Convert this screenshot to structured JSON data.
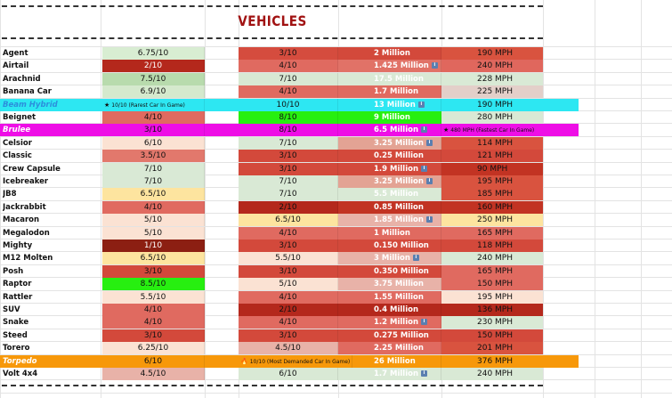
{
  "title": "VEHICLES",
  "colors": {
    "title": "#a11212",
    "cyan_band": "#2de7f2",
    "magenta_band": "#ee0ee6",
    "orange_band": "#f7980a",
    "bright_green": "#2ef016"
  },
  "rows": [
    {
      "name": "Agent",
      "rating1": "6.75/10",
      "rating2": "3/10",
      "price": "2 Million",
      "speed": "190 MPH",
      "c1": "#d8edd2",
      "c2": "#d54c3e",
      "cp": "#d3493b",
      "cs": "#d9533f"
    },
    {
      "name": "Airtail",
      "rating1": "2/10",
      "rating2": "4/10",
      "price": "1.425 Million",
      "speed": "240 MPH",
      "c1": "#b4281c",
      "c2": "#e06a60",
      "cp": "#e17267",
      "cs": "#e0675d",
      "price_icon": "info-icon"
    },
    {
      "name": "Arachnid",
      "rating1": "7.5/10",
      "rating2": "7/10",
      "price": "17.5 Million",
      "speed": "228 MPH",
      "c1": "#b8dbad",
      "c2": "#d8e8d3",
      "cp": "#d9e9d5",
      "cs": "#d9e9d5"
    },
    {
      "name": "Banana Car",
      "rating1": "6.9/10",
      "rating2": "4/10",
      "price": "1.7 Million",
      "speed": "225 MPH",
      "c1": "#d5e9cd",
      "c2": "#e06a60",
      "cp": "#e06a60",
      "cs": "#e3cfc9"
    },
    {
      "name": "Beam Hybrid",
      "rating1": "10/10",
      "rating2": "10/10",
      "price": "13 Million",
      "speed": "190 MPH",
      "band": "#2de7f2",
      "name_color": "#2b8fdc",
      "italic": true,
      "note1": "10/10 (Rarest Car In Game)",
      "price_icon": "info-icon"
    },
    {
      "name": "Beignet",
      "rating1": "4/10",
      "rating2": "8/10",
      "price": "9 Million",
      "speed": "280 MPH",
      "c1": "#e06a60",
      "c2": "#27ef10",
      "cp": "#27ef10",
      "cs": "#d9e9d5"
    },
    {
      "name": "Brulee",
      "rating1": "3/10",
      "rating2": "8/10",
      "price": "6.5 Million",
      "speed": "",
      "band": "#ee0ee6",
      "name_color": "#ffffff",
      "italic": true,
      "price_icon": "info-icon",
      "note_speed": "480 MPH (Fastest Car In Game)"
    },
    {
      "name": "Celsior",
      "rating1": "6/10",
      "rating2": "7/10",
      "price": "3.25 Million",
      "speed": "114 MPH",
      "c1": "#fbe2d3",
      "c2": "#d9e9d5",
      "cp": "#e3a394",
      "cs": "#d9533f",
      "price_icon": "info-icon"
    },
    {
      "name": "Classic",
      "rating1": "3.5/10",
      "rating2": "3/10",
      "price": "0.25 Million",
      "speed": "121 MPH",
      "c1": "#e2786c",
      "c2": "#d3493b",
      "cp": "#d3493b",
      "cs": "#d3493b"
    },
    {
      "name": "Crew Capsule",
      "rating1": "7/10",
      "rating2": "3/10",
      "price": "1.9 Million",
      "speed": "90 MPH",
      "c1": "#d9e9d5",
      "c2": "#d3493b",
      "cp": "#d3493b",
      "cs": "#c23323",
      "price_icon": "info-icon"
    },
    {
      "name": "Icebreaker",
      "rating1": "7/10",
      "rating2": "7/10",
      "price": "3.25 Million",
      "speed": "195 MPH",
      "c1": "#d9e9d5",
      "c2": "#d9e9d5",
      "cp": "#e3a394",
      "cs": "#d9533f",
      "price_icon": "info-icon"
    },
    {
      "name": "JB8",
      "rating1": "6.5/10",
      "rating2": "7/10",
      "price": "5.5 Million",
      "speed": "185 MPH",
      "c1": "#fde49f",
      "c2": "#d9e9d5",
      "cp": "#d9e9d5",
      "cs": "#d9533f"
    },
    {
      "name": "Jackrabbit",
      "rating1": "4/10",
      "rating2": "2/10",
      "price": "0.85 Million",
      "speed": "160 MPH",
      "c1": "#e06a60",
      "c2": "#b4281c",
      "cp": "#c23323",
      "cs": "#c23323"
    },
    {
      "name": "Macaron",
      "rating1": "5/10",
      "rating2": "6.5/10",
      "price": "1.85 Million",
      "speed": "250 MPH",
      "c1": "#fbe2d3",
      "c2": "#fde49f",
      "cp": "#e8b2a8",
      "cs": "#fde49f",
      "price_icon": "info-icon"
    },
    {
      "name": "Megalodon",
      "rating1": "5/10",
      "rating2": "4/10",
      "price": "1 Million",
      "speed": "165 MPH",
      "c1": "#fbe2d3",
      "c2": "#e06a60",
      "cp": "#e06a60",
      "cs": "#e06a60"
    },
    {
      "name": "Mighty",
      "rating1": "1/10",
      "rating2": "3/10",
      "price": "0.150 Million",
      "speed": "118 MPH",
      "c1": "#8c1f12",
      "c2": "#d3493b",
      "cp": "#d3493b",
      "cs": "#d3493b"
    },
    {
      "name": "M12 Molten",
      "rating1": "6.5/10",
      "rating2": "5.5/10",
      "price": "3 Million",
      "speed": "240 MPH",
      "c1": "#fde49f",
      "c2": "#fbe2d3",
      "cp": "#e8b2a8",
      "cs": "#d9e9d5",
      "price_icon": "info-icon"
    },
    {
      "name": "Posh",
      "rating1": "3/10",
      "rating2": "3/10",
      "price": "0.350 Million",
      "speed": "165 MPH",
      "c1": "#d3493b",
      "c2": "#d3493b",
      "cp": "#d3493b",
      "cs": "#e06a60"
    },
    {
      "name": "Raptor",
      "rating1": "8.5/10",
      "rating2": "5/10",
      "price": "3.75 Million",
      "speed": "150 MPH",
      "c1": "#27ef10",
      "c2": "#fbe2d3",
      "cp": "#e8b2a8",
      "cs": "#e06a60"
    },
    {
      "name": "Rattler",
      "rating1": "5.5/10",
      "rating2": "4/10",
      "price": "1.55 Million",
      "speed": "195 MPH",
      "c1": "#fbe2d3",
      "c2": "#e06a60",
      "cp": "#e06a60",
      "cs": "#fbe2d3"
    },
    {
      "name": "SUV",
      "rating1": "4/10",
      "rating2": "2/10",
      "price": "0.4 Million",
      "speed": "136 MPH",
      "c1": "#e06a60",
      "c2": "#b4281c",
      "cp": "#b4281c",
      "cs": "#b4281c"
    },
    {
      "name": "Snake",
      "rating1": "4/10",
      "rating2": "4/10",
      "price": "1.2 Million",
      "speed": "230 MPH",
      "c1": "#e06a60",
      "c2": "#e06a60",
      "cp": "#e06a60",
      "cs": "#d9e9d5",
      "price_icon": "info-icon"
    },
    {
      "name": "Steed",
      "rating1": "3/10",
      "rating2": "3/10",
      "price": "0.275 Million",
      "speed": "150 MPH",
      "c1": "#d3493b",
      "c2": "#d3493b",
      "cp": "#d3493b",
      "cs": "#d3493b"
    },
    {
      "name": "Torero",
      "rating1": "6.25/10",
      "rating2": "4.5/10",
      "price": "2.25 Million",
      "speed": "201 MPH",
      "c1": "#fbe2d3",
      "c2": "#e8b2a8",
      "cp": "#e06a60",
      "cs": "#d9533f"
    },
    {
      "name": "Torpedo",
      "rating1": "6/10",
      "rating2": "",
      "price": "26 Million",
      "speed": "376 MPH",
      "band": "#f7980a",
      "name_color": "#ffffff",
      "italic": true,
      "note2": "10/10 (Most Demanded Car In Game)"
    },
    {
      "name": "Volt 4x4",
      "rating1": "4.5/10",
      "rating2": "6/10",
      "price": "1.7 Million",
      "speed": "240 MPH",
      "c1": "#e8b2a8",
      "c2": "#d9e9d5",
      "cp": "#d9e9d5",
      "cs": "#d9e9d5",
      "price_icon": "info-icon"
    }
  ]
}
